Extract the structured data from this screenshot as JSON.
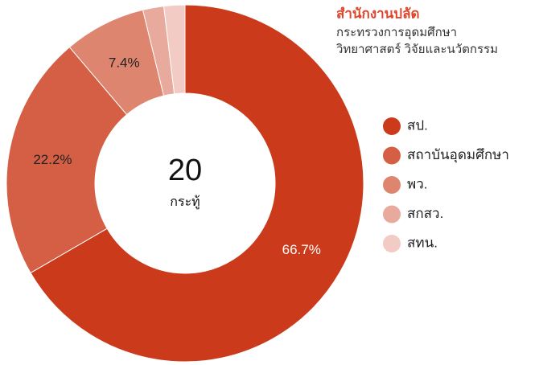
{
  "header": {
    "title": "สำนักงานปลัด",
    "subtitle_lines": [
      "กระทรวงการอุดมศึกษา",
      "วิทยาศาสตร์ วิจัยและนวัตกรรม"
    ]
  },
  "chart_data": {
    "type": "donut",
    "categories": [
      "สป.",
      "สถาบันอุดมศึกษา",
      "พว.",
      "สกสว.",
      "สทน."
    ],
    "values": [
      66.7,
      22.2,
      7.4,
      1.9,
      1.9
    ],
    "value_labels": [
      "66.7%",
      "22.2%",
      "7.4%",
      null,
      null
    ],
    "colors": [
      "#cb3a1a",
      "#d55f44",
      "#de8570",
      "#e8aa9c",
      "#f2ccc4"
    ],
    "center_value": "20",
    "center_label": "กระทู้",
    "legend": "right"
  }
}
